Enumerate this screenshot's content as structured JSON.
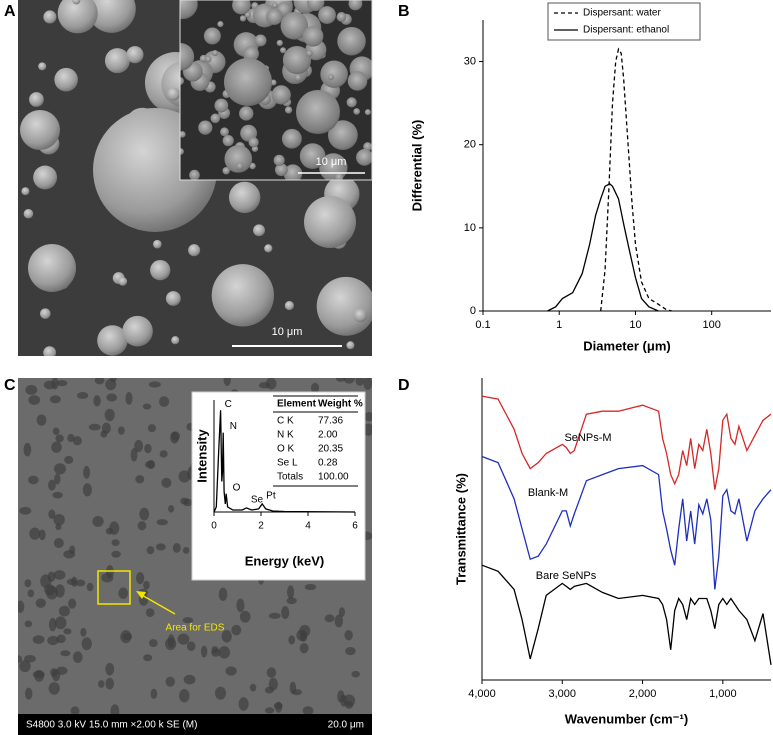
{
  "panels": {
    "A": {
      "label": "A",
      "scale_bar": "10 μm",
      "inset_scale_bar": "10 μm"
    },
    "B": {
      "label": "B"
    },
    "C": {
      "label": "C",
      "box_label": "Area for EDS",
      "info": "S4800 3.0 kV 15.0 mm ×2.00 k SE (M)",
      "scale_bar": "20.0 μm",
      "table": {
        "header": [
          "Element",
          "Weight %"
        ],
        "rows": [
          [
            "C K",
            "77.36"
          ],
          [
            "N K",
            "2.00"
          ],
          [
            "O K",
            "20.35"
          ],
          [
            "Se L",
            "0.28"
          ],
          [
            "Totals",
            "100.00"
          ]
        ]
      }
    },
    "D": {
      "label": "D"
    }
  },
  "chart_data": [
    {
      "type": "line",
      "xlabel": "Diameter (μm)",
      "ylabel": "Differential (%)",
      "xscale": "log",
      "xlim": [
        0.1,
        600
      ],
      "ylim": [
        0,
        35
      ],
      "xticks": [
        0.1,
        1,
        10,
        100
      ],
      "yticks": [
        0,
        10,
        20,
        30
      ],
      "legend": "upper center",
      "series": [
        {
          "name": "Dispersant: water",
          "color": "#000000",
          "dash": "dashed",
          "x": [
            3.5,
            4,
            4.5,
            5,
            5.5,
            6,
            6.5,
            7,
            8,
            9,
            10,
            12,
            15,
            20,
            25,
            30
          ],
          "values": [
            0,
            5,
            15,
            25,
            30,
            31.5,
            31,
            28,
            20,
            13,
            8,
            3.5,
            1.5,
            0.8,
            0.2,
            0
          ]
        },
        {
          "name": "Dispersant: ethanol",
          "color": "#000000",
          "dash": "solid",
          "x": [
            0.7,
            0.9,
            1.1,
            1.5,
            2,
            2.5,
            3,
            3.5,
            4,
            4.6,
            5,
            6,
            7,
            8,
            10,
            12,
            15,
            20
          ],
          "values": [
            0,
            0.5,
            1.5,
            2.2,
            4.5,
            8,
            11.5,
            13.5,
            15,
            15.3,
            15,
            13.5,
            10.5,
            8,
            4,
            1.5,
            0.5,
            0
          ]
        }
      ]
    },
    {
      "type": "line",
      "xlabel": "Energy (keV)",
      "ylabel": "Intensity",
      "xlim": [
        0,
        6
      ],
      "ylim": [
        0,
        110
      ],
      "xticks": [
        0,
        2,
        4,
        6
      ],
      "x": [
        0,
        0.1,
        0.2,
        0.28,
        0.33,
        0.36,
        0.39,
        0.43,
        0.48,
        0.52,
        0.58,
        0.8,
        1.2,
        1.38,
        1.6,
        1.9,
        2.05,
        2.2,
        2.5,
        3,
        6
      ],
      "series": [
        {
          "color": "#000000",
          "values": [
            0,
            5,
            60,
            100,
            30,
            40,
            78,
            20,
            8,
            18,
            5,
            2,
            2,
            4,
            2,
            3,
            8,
            3,
            1,
            0.5,
            0
          ]
        }
      ],
      "annotations": [
        {
          "text": "C",
          "x": 0.28,
          "y": 100
        },
        {
          "text": "N",
          "x": 0.5,
          "y": 78
        },
        {
          "text": "O",
          "x": 0.62,
          "y": 18
        },
        {
          "text": "Se",
          "x": 1.4,
          "y": 6
        },
        {
          "text": "Pt",
          "x": 2.05,
          "y": 10
        }
      ]
    },
    {
      "type": "line",
      "xlabel": "Wavenumber (cm⁻¹)",
      "ylabel": "Transmittance (%)",
      "xlim": [
        4000,
        400
      ],
      "ylim": [
        0,
        100
      ],
      "xticks": [
        {
          "value": 4000,
          "label": "4,000"
        },
        {
          "value": 3000,
          "label": "3,000"
        },
        {
          "value": 2000,
          "label": "2,000"
        },
        {
          "value": 1000,
          "label": "1,000"
        }
      ],
      "x": [
        4000,
        3800,
        3600,
        3500,
        3400,
        3300,
        3200,
        3000,
        2950,
        2900,
        2850,
        2700,
        2500,
        2300,
        2000,
        1800,
        1750,
        1700,
        1650,
        1600,
        1550,
        1500,
        1450,
        1400,
        1350,
        1300,
        1250,
        1200,
        1150,
        1100,
        1050,
        1000,
        950,
        900,
        850,
        800,
        700,
        600,
        500,
        400
      ],
      "series": [
        {
          "name": "SeNPs-M",
          "color": "#d62728",
          "values": [
            94,
            93,
            83,
            75,
            70,
            72,
            75,
            78,
            77,
            75,
            76,
            88,
            89,
            89,
            91,
            89,
            80,
            75,
            68,
            65,
            68,
            76,
            71,
            80,
            70,
            78,
            76,
            83,
            75,
            63,
            70,
            86,
            88,
            80,
            78,
            84,
            76,
            81,
            86,
            88
          ]
        },
        {
          "name": "Blank-M",
          "color": "#1f2fbf",
          "values": [
            74,
            72,
            60,
            50,
            40,
            41,
            45,
            56,
            56,
            51,
            55,
            66,
            68,
            70,
            71,
            68,
            56,
            50,
            43,
            38,
            50,
            60,
            46,
            56,
            45,
            58,
            55,
            60,
            53,
            30,
            41,
            61,
            63,
            56,
            55,
            60,
            46,
            56,
            60,
            63
          ]
        },
        {
          "name": "Bare SeNPs",
          "color": "#000000",
          "values": [
            38,
            36,
            30,
            20,
            7,
            17,
            28,
            32,
            31,
            30,
            31,
            32,
            29,
            27,
            28,
            27,
            25,
            20,
            10,
            23,
            27,
            25,
            20,
            27,
            25,
            27,
            27,
            27,
            23,
            17,
            25,
            27,
            25,
            27,
            25,
            23,
            20,
            13,
            22,
            5
          ]
        }
      ]
    }
  ]
}
